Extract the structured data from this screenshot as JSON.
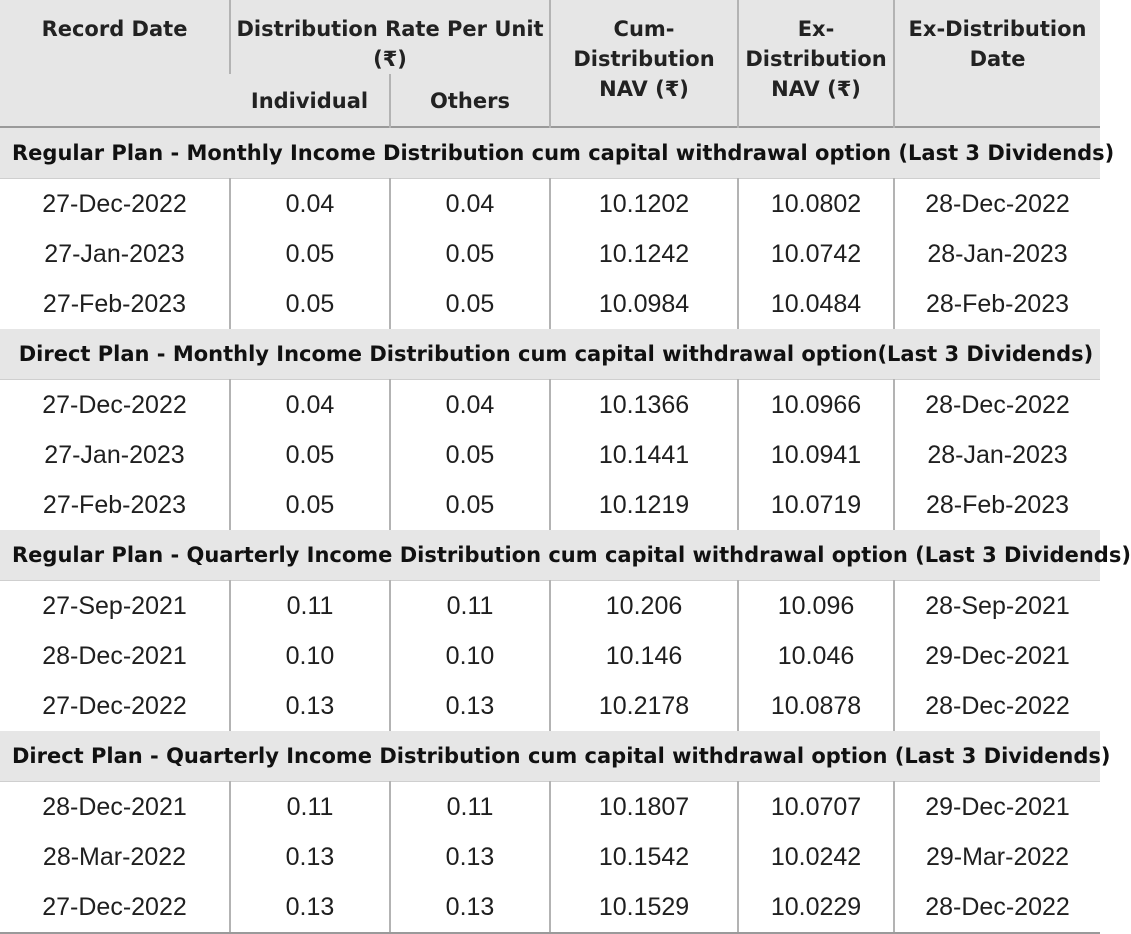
{
  "headers": {
    "record_date": "Record Date",
    "rate_group": "Distribution Rate Per Unit  (₹)",
    "individual": "Individual",
    "others": "Others",
    "cum_nav": "Cum-Distribution NAV (₹)",
    "ex_nav": "Ex-Distribution NAV (₹)",
    "ex_date": "Ex-Distribution Date"
  },
  "sections": [
    {
      "title": "Regular Plan - Monthly Income Distribution cum capital withdrawal option (Last 3 Dividends)",
      "rows": [
        [
          "27-Dec-2022",
          "0.04",
          "0.04",
          "10.1202",
          "10.0802",
          "28-Dec-2022"
        ],
        [
          "27-Jan-2023",
          "0.05",
          "0.05",
          "10.1242",
          "10.0742",
          "28-Jan-2023"
        ],
        [
          "27-Feb-2023",
          "0.05",
          "0.05",
          "10.0984",
          "10.0484",
          "28-Feb-2023"
        ]
      ]
    },
    {
      "title": "Direct Plan - Monthly Income Distribution cum capital withdrawal option(Last 3 Dividends)",
      "rows": [
        [
          "27-Dec-2022",
          "0.04",
          "0.04",
          "10.1366",
          "10.0966",
          "28-Dec-2022"
        ],
        [
          "27-Jan-2023",
          "0.05",
          "0.05",
          "10.1441",
          "10.0941",
          "28-Jan-2023"
        ],
        [
          "27-Feb-2023",
          "0.05",
          "0.05",
          "10.1219",
          "10.0719",
          "28-Feb-2023"
        ]
      ]
    },
    {
      "title": "Regular Plan - Quarterly Income Distribution cum capital withdrawal option (Last 3 Dividends)",
      "rows": [
        [
          "27-Sep-2021",
          "0.11",
          "0.11",
          "10.206",
          "10.096",
          "28-Sep-2021"
        ],
        [
          "28-Dec-2021",
          "0.10",
          "0.10",
          "10.146",
          "10.046",
          "29-Dec-2021"
        ],
        [
          "27-Dec-2022",
          "0.13",
          "0.13",
          "10.2178",
          "10.0878",
          "28-Dec-2022"
        ]
      ]
    },
    {
      "title": "Direct Plan - Quarterly Income Distribution cum capital withdrawal option (Last 3 Dividends)",
      "rows": [
        [
          "28-Dec-2021",
          "0.11",
          "0.11",
          "10.1807",
          "10.0707",
          "29-Dec-2021"
        ],
        [
          "28-Mar-2022",
          "0.13",
          "0.13",
          "10.1542",
          "10.0242",
          "29-Mar-2022"
        ],
        [
          "27-Dec-2022",
          "0.13",
          "0.13",
          "10.1529",
          "10.0229",
          "28-Dec-2022"
        ]
      ]
    }
  ]
}
